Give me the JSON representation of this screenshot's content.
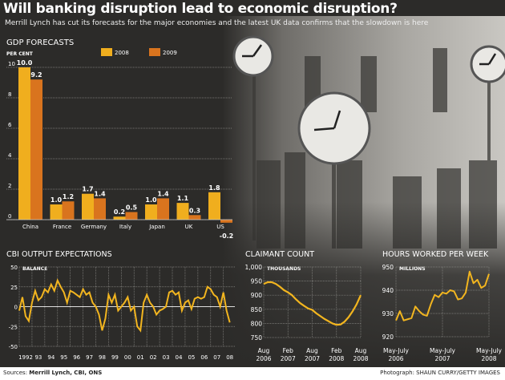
{
  "header": {
    "title": "Will banking disruption lead to economic disruption?",
    "subtitle": "Merrill Lynch has cut its forecasts for the major economies and the latest UK data confirms that the slowdown is here"
  },
  "footer": {
    "sources_label": "Sources:",
    "sources": "Merrill Lynch, CBI, ONS",
    "photo_credit": "Photograph: SHAUN CURRY/GETTY IMAGES"
  },
  "colors": {
    "background": "#2c2b29",
    "series_2008": "#f0ae1e",
    "series_2009": "#d9741e",
    "line": "#f2b51f",
    "grid": "#8a8a86"
  },
  "chart_data": [
    {
      "type": "bar",
      "title": "GDP FORECASTS",
      "ylabel": "PER CENT",
      "ylim": [
        0,
        10
      ],
      "yticks": [
        0,
        2,
        4,
        6,
        8,
        10
      ],
      "grid": true,
      "legend": "top-center",
      "categories": [
        "China",
        "France",
        "Germany",
        "Italy",
        "Japan",
        "UK",
        "US"
      ],
      "series": [
        {
          "name": "2008",
          "values": [
            10.0,
            1.0,
            1.7,
            0.2,
            1.0,
            1.1,
            1.8
          ],
          "labels": [
            "10.0",
            "1.0",
            "1.7",
            "0.2",
            "1.0",
            "1.1",
            "1.8"
          ]
        },
        {
          "name": "2009",
          "values": [
            9.2,
            1.2,
            1.4,
            0.5,
            1.4,
            0.3,
            -0.2
          ],
          "labels": [
            "9.2",
            "1.2",
            "1.4",
            "0.5",
            "1.4",
            "0.3",
            "-0.2"
          ]
        }
      ]
    },
    {
      "type": "line",
      "title": "CBI OUTPUT EXPECTATIONS",
      "ylabel": "BALANCE",
      "ylim": [
        -50,
        50
      ],
      "yticks": [
        "50",
        "25",
        "0",
        "-25",
        "-50"
      ],
      "xlim": [
        1992,
        2008.9
      ],
      "xticks": [
        "1992",
        "93",
        "94",
        "95",
        "96",
        "97",
        "98",
        "99",
        "00",
        "01",
        "02",
        "03",
        "04",
        "05",
        "06",
        "07",
        "08"
      ],
      "grid": true,
      "x_start": 1992,
      "x_step": 0.25,
      "values": [
        -5,
        12,
        -12,
        -18,
        5,
        20,
        8,
        12,
        22,
        18,
        28,
        20,
        33,
        25,
        18,
        5,
        20,
        18,
        15,
        12,
        22,
        15,
        18,
        5,
        0,
        -10,
        -30,
        -15,
        15,
        5,
        15,
        -5,
        0,
        5,
        12,
        -5,
        0,
        -25,
        -30,
        5,
        15,
        5,
        0,
        -10,
        -5,
        -3,
        0,
        18,
        20,
        15,
        18,
        -5,
        5,
        8,
        -3,
        10,
        12,
        10,
        12,
        25,
        22,
        15,
        12,
        0,
        18,
        -5,
        -20
      ]
    },
    {
      "type": "line",
      "title": "CLAIMANT COUNT",
      "ylabel": "THOUSANDS",
      "ylim": [
        750,
        1000
      ],
      "yticks": [
        "1,000",
        "950",
        "900",
        "850",
        "800",
        "750"
      ],
      "xticks": [
        [
          "Aug",
          "2006"
        ],
        [
          "Feb",
          "2007"
        ],
        [
          "Aug",
          "2007"
        ],
        [
          "Feb",
          "2008"
        ],
        [
          "Aug",
          "2008"
        ]
      ],
      "grid": true,
      "x": [
        "2006-08",
        "2006-09",
        "2006-10",
        "2006-11",
        "2006-12",
        "2007-01",
        "2007-02",
        "2007-03",
        "2007-04",
        "2007-05",
        "2007-06",
        "2007-07",
        "2007-08",
        "2007-09",
        "2007-10",
        "2007-11",
        "2007-12",
        "2008-01",
        "2008-02",
        "2008-03",
        "2008-04",
        "2008-05",
        "2008-06",
        "2008-07",
        "2008-08"
      ],
      "values": [
        940,
        946,
        946,
        940,
        930,
        918,
        910,
        900,
        885,
        872,
        862,
        853,
        848,
        836,
        826,
        816,
        808,
        800,
        795,
        796,
        806,
        822,
        843,
        868,
        900
      ]
    },
    {
      "type": "line",
      "title": "HOURS WORKED PER WEEK",
      "ylabel": "MILLIONS",
      "ylim": [
        920,
        950
      ],
      "yticks": [
        "950",
        "940",
        "930",
        "920"
      ],
      "xticks": [
        [
          "May-July",
          "2006"
        ],
        [
          "May-July",
          "2007"
        ],
        [
          "May-July",
          "2008"
        ]
      ],
      "grid": true,
      "x": [
        "May-Jul 2006",
        "Jun-Aug 2006",
        "Jul-Sep 2006",
        "Aug-Oct 2006",
        "Sep-Nov 2006",
        "Oct-Dec 2006",
        "Nov-Jan 2007",
        "Dec-Feb 2007",
        "Jan-Mar 2007",
        "Feb-Apr 2007",
        "Mar-May 2007",
        "Apr-Jun 2007",
        "May-Jul 2007",
        "Jun-Aug 2007",
        "Jul-Sep 2007",
        "Aug-Oct 2007",
        "Sep-Nov 2007",
        "Oct-Dec 2007",
        "Nov-Jan 2008",
        "Dec-Feb 2008",
        "Jan-Mar 2008",
        "Feb-Apr 2008",
        "Mar-May 2008",
        "Apr-Jun 2008",
        "May-Jul 2008"
      ],
      "values": [
        927,
        931,
        927,
        927.5,
        928,
        933,
        931,
        929.5,
        929,
        934,
        938,
        937,
        939,
        938.5,
        940,
        939.5,
        936,
        936.5,
        939,
        948,
        943,
        944.5,
        941,
        942,
        947
      ]
    }
  ]
}
